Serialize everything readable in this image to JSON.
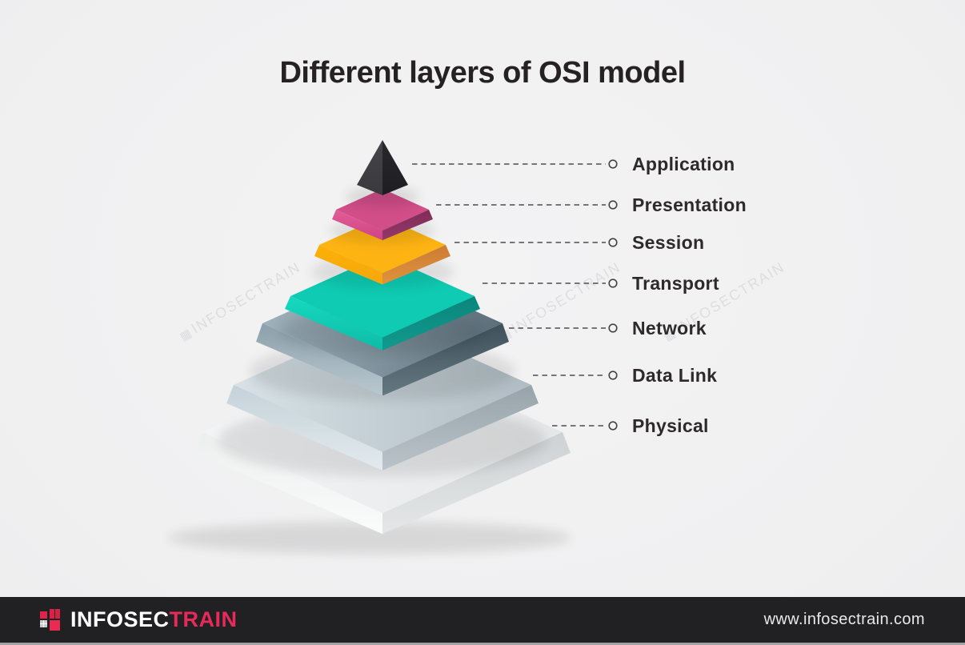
{
  "title": "Different layers of OSI model",
  "watermark": {
    "icon": "▦",
    "text": "INFOSECTRAIN"
  },
  "chart_data": {
    "type": "pyramid",
    "title": "Different layers of OSI model",
    "orientation": "top-to-bottom",
    "layers": [
      {
        "label": "Application",
        "colors": {
          "left": "#454549",
          "left2": "#3a3a3e",
          "right": "#29292d",
          "right2": "#1e1e22"
        }
      },
      {
        "label": "Presentation",
        "colors": {
          "top": "#d14e89",
          "left": "#e25d97",
          "left2": "#cf4384",
          "right": "#7f2c58",
          "right2": "#94386a"
        }
      },
      {
        "label": "Session",
        "colors": {
          "top": "#fdb413",
          "left": "#fcb007",
          "left2": "#f8a70d",
          "right": "#cc7c34",
          "right2": "#e0923c"
        }
      },
      {
        "label": "Transport",
        "colors": {
          "top": "#0fcbb3",
          "left": "#17d9c0",
          "left2": "#0dbca7",
          "right": "#0a867c",
          "right2": "#12998d"
        }
      },
      {
        "label": "Network",
        "colors": {
          "top": "#9fb2bc",
          "top2": "#5c6f7a",
          "left": "#8ba0ab",
          "left2": "#bac8cf",
          "right": "#3e515b",
          "right2": "#657881"
        }
      },
      {
        "label": "Data Link",
        "colors": {
          "top": "#d7e1e6",
          "top2": "#b0bcc3",
          "left": "#c5d2d9",
          "left2": "#e2eaee",
          "right": "#97a3aa",
          "right2": "#bac3c9"
        }
      },
      {
        "label": "Physical",
        "colors": {
          "top": "#f3f4f5",
          "top2": "#e5e7e9",
          "left": "#edefef",
          "left2": "#fafbfb",
          "right": "#ced2d4",
          "right2": "#e4e6e7"
        }
      }
    ],
    "connector_style": "dashed line with open circle endpoint"
  },
  "footer": {
    "brand_white": "INFOSEC",
    "brand_red": "TRAIN",
    "website": "www.infosectrain.com",
    "colors": {
      "bar": "#212123",
      "accent_red": "#e62a5a"
    }
  }
}
